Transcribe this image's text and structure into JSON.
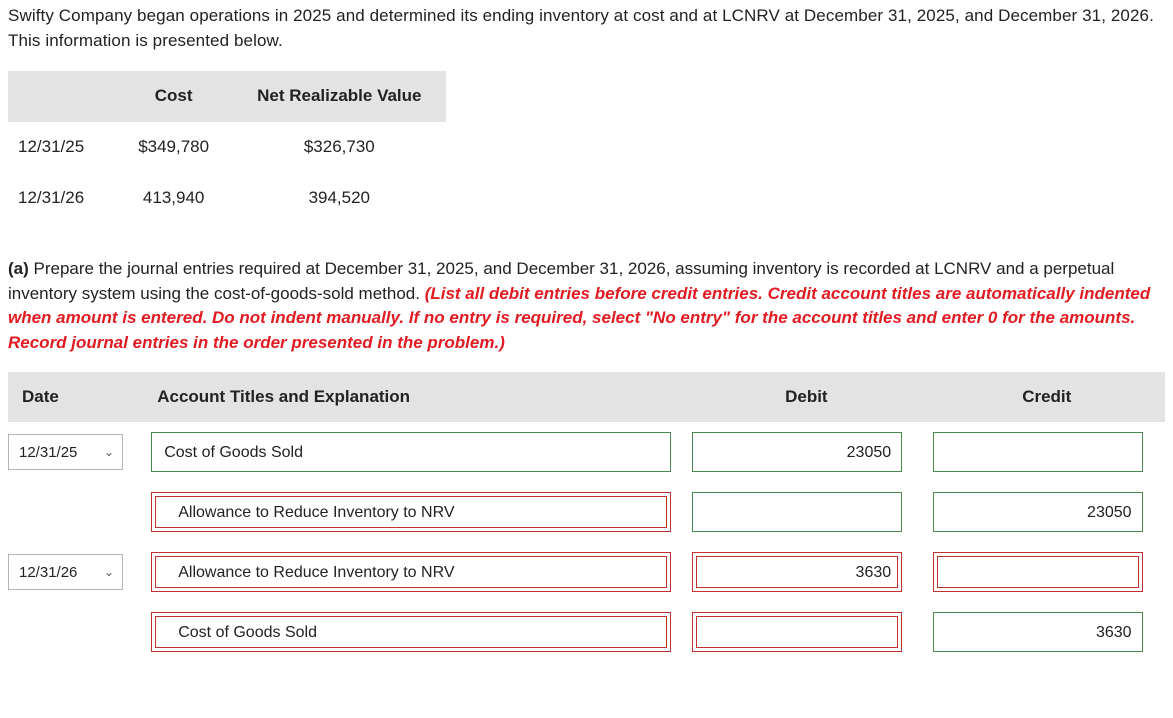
{
  "intro": "Swifty Company began operations in 2025 and determined its ending inventory at cost and at LCNRV at December 31, 2025, and December 31, 2026. This information is presented below.",
  "nrv_table": {
    "headers": {
      "blank": "",
      "cost": "Cost",
      "nrv": "Net Realizable Value"
    },
    "rows": [
      {
        "date": "12/31/25",
        "cost": "$349,780",
        "nrv": "$326,730"
      },
      {
        "date": "12/31/26",
        "cost": "413,940",
        "nrv": "394,520"
      }
    ]
  },
  "part_a": {
    "label": "(a)",
    "body_black": " Prepare the journal entries required at December 31, 2025, and December 31, 2026, assuming inventory is recorded at LCNRV and a perpetual inventory system using the cost-of-goods-sold method. ",
    "body_red": "(List all debit entries before credit entries. Credit account titles are automatically indented when amount is entered. Do not indent manually. If no entry is required, select \"No entry\" for the account titles and enter 0 for the amounts. Record journal entries in the order presented in the problem.)"
  },
  "je": {
    "headers": {
      "date": "Date",
      "acct": "Account Titles and Explanation",
      "debit": "Debit",
      "credit": "Credit"
    },
    "rows": [
      {
        "date": "12/31/25",
        "acct": "Cost of Goods Sold",
        "debit": "23050",
        "credit": "",
        "state": "ok",
        "indent": false
      },
      {
        "date": "",
        "acct": "Allowance to Reduce Inventory to NRV",
        "debit": "",
        "credit": "23050",
        "state": "wrong",
        "indent": true
      },
      {
        "date": "12/31/26",
        "acct": "Allowance to Reduce Inventory to NRV",
        "debit": "3630",
        "credit": "",
        "state": "wrong",
        "indent": true
      },
      {
        "date": "",
        "acct": "Cost of Goods Sold",
        "debit": "",
        "credit": "3630",
        "state": "wrong",
        "indent": true
      }
    ]
  },
  "colors": {
    "header_bg": "#e3e3e3",
    "correct_border": "#4a8a4a",
    "wrong_border": "#c23030",
    "red_text": "#e11b22"
  }
}
